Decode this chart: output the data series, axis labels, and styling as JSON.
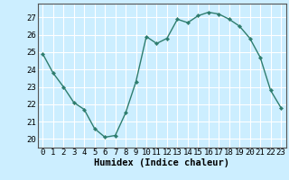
{
  "x": [
    0,
    1,
    2,
    3,
    4,
    5,
    6,
    7,
    8,
    9,
    10,
    11,
    12,
    13,
    14,
    15,
    16,
    17,
    18,
    19,
    20,
    21,
    22,
    23
  ],
  "y": [
    24.9,
    23.8,
    23.0,
    22.1,
    21.7,
    20.6,
    20.1,
    20.2,
    21.5,
    23.3,
    25.9,
    25.5,
    25.8,
    26.9,
    26.7,
    27.1,
    27.3,
    27.2,
    26.9,
    26.5,
    25.8,
    24.7,
    22.8,
    21.8
  ],
  "line_color": "#2e7d6e",
  "marker": "D",
  "marker_size": 2.2,
  "linewidth": 1.0,
  "xlabel": "Humidex (Indice chaleur)",
  "xlabel_fontsize": 7.5,
  "xlim": [
    -0.5,
    23.5
  ],
  "ylim": [
    19.5,
    27.8
  ],
  "yticks": [
    20,
    21,
    22,
    23,
    24,
    25,
    26,
    27
  ],
  "xticks": [
    0,
    1,
    2,
    3,
    4,
    5,
    6,
    7,
    8,
    9,
    10,
    11,
    12,
    13,
    14,
    15,
    16,
    17,
    18,
    19,
    20,
    21,
    22,
    23
  ],
  "bg_color": "#cceeff",
  "plot_bg_color": "#cceeff",
  "grid_color": "#ffffff",
  "tick_fontsize": 6.5,
  "marker_color": "#2e7d6e",
  "spine_color": "#555555"
}
